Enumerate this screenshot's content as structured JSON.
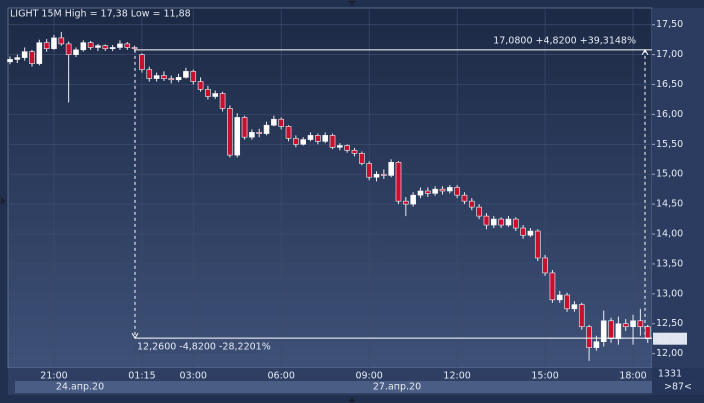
{
  "chart_data": {
    "type": "candlestick",
    "title": "LIGHT 15M High = 17,38 Low = 11,88",
    "categories": [
      null,
      null,
      null,
      null,
      null,
      null,
      "21:00",
      null,
      null,
      null,
      null,
      null,
      null,
      null,
      null,
      null,
      null,
      null,
      "01:15",
      null,
      null,
      null,
      null,
      null,
      null,
      "03:00",
      null,
      null,
      null,
      null,
      null,
      null,
      null,
      null,
      null,
      null,
      null,
      "06:00",
      null,
      null,
      null,
      null,
      null,
      null,
      null,
      null,
      null,
      null,
      null,
      "09:00",
      null,
      null,
      null,
      null,
      null,
      null,
      null,
      null,
      null,
      null,
      null,
      "12:00",
      null,
      null,
      null,
      null,
      null,
      null,
      null,
      null,
      null,
      null,
      null,
      "15:00",
      null,
      null,
      null,
      null,
      null,
      null,
      null,
      null,
      null,
      null,
      null,
      "18:00",
      null,
      null
    ],
    "date_labels": [
      "24.апр.20",
      "27.апр.20"
    ],
    "open": [
      16.88,
      16.92,
      16.95,
      17.05,
      16.85,
      17.2,
      17.1,
      17.28,
      17.18,
      17.0,
      17.08,
      17.2,
      17.12,
      17.15,
      17.1,
      17.12,
      17.18,
      17.12,
      17.0,
      16.75,
      16.6,
      16.65,
      16.6,
      16.58,
      16.62,
      16.72,
      16.55,
      16.42,
      16.3,
      16.35,
      16.1,
      15.32,
      15.95,
      15.62,
      15.7,
      15.68,
      15.82,
      15.92,
      15.8,
      15.6,
      15.5,
      15.58,
      15.65,
      15.55,
      15.65,
      15.45,
      15.48,
      15.4,
      15.35,
      15.18,
      14.95,
      15.0,
      14.98,
      15.2,
      14.55,
      14.5,
      14.65,
      14.72,
      14.68,
      14.75,
      14.72,
      14.78,
      14.65,
      14.55,
      14.45,
      14.3,
      14.15,
      14.25,
      14.15,
      14.25,
      14.1,
      13.98,
      14.05,
      13.6,
      13.35,
      12.9,
      12.98,
      12.75,
      12.82,
      12.45,
      12.1,
      12.2,
      12.55,
      12.25,
      12.5,
      12.45,
      12.55,
      12.45
    ],
    "high": [
      16.97,
      17.0,
      17.12,
      17.08,
      17.25,
      17.26,
      17.33,
      17.38,
      17.22,
      17.12,
      17.24,
      17.23,
      17.18,
      17.17,
      17.16,
      17.24,
      17.21,
      17.15,
      17.02,
      16.8,
      16.7,
      16.72,
      16.65,
      16.68,
      16.78,
      16.75,
      16.62,
      16.48,
      16.4,
      16.38,
      16.15,
      16.02,
      15.98,
      15.75,
      15.76,
      15.88,
      15.98,
      15.95,
      15.82,
      15.65,
      15.62,
      15.7,
      15.68,
      15.7,
      15.68,
      15.52,
      15.5,
      15.44,
      15.38,
      15.22,
      15.05,
      15.08,
      15.25,
      15.22,
      14.62,
      14.7,
      14.78,
      14.78,
      14.8,
      14.8,
      14.82,
      14.82,
      14.7,
      14.6,
      14.5,
      14.35,
      14.3,
      14.28,
      14.3,
      14.28,
      14.15,
      14.1,
      14.08,
      13.65,
      13.4,
      13.05,
      13.02,
      12.88,
      12.85,
      12.48,
      12.3,
      12.72,
      12.6,
      12.62,
      12.58,
      12.65,
      12.75,
      12.48
    ],
    "low": [
      16.84,
      16.86,
      16.9,
      16.8,
      16.82,
      17.05,
      17.08,
      17.15,
      16.2,
      16.96,
      17.05,
      17.08,
      17.06,
      17.06,
      17.06,
      17.08,
      17.08,
      17.06,
      16.7,
      16.55,
      16.55,
      16.56,
      16.52,
      16.54,
      16.6,
      16.5,
      16.38,
      16.25,
      16.26,
      16.05,
      15.28,
      15.28,
      15.58,
      15.58,
      15.62,
      15.65,
      15.8,
      15.75,
      15.55,
      15.45,
      15.48,
      15.55,
      15.5,
      15.52,
      15.42,
      15.4,
      15.36,
      15.3,
      15.15,
      14.9,
      14.88,
      14.92,
      14.95,
      14.5,
      14.3,
      14.46,
      14.6,
      14.62,
      14.64,
      14.66,
      14.68,
      14.6,
      14.5,
      14.4,
      14.25,
      14.08,
      14.1,
      14.1,
      14.12,
      14.05,
      13.92,
      13.95,
      13.55,
      13.3,
      12.85,
      12.85,
      12.7,
      12.7,
      12.4,
      11.88,
      12.05,
      12.12,
      12.18,
      12.15,
      12.38,
      12.15,
      12.3,
      12.18
    ],
    "close": [
      16.92,
      16.95,
      17.05,
      16.85,
      17.2,
      17.1,
      17.28,
      17.18,
      17.0,
      17.08,
      17.2,
      17.12,
      17.15,
      17.1,
      17.12,
      17.18,
      17.12,
      17.1,
      16.75,
      16.6,
      16.65,
      16.6,
      16.58,
      16.62,
      16.72,
      16.55,
      16.42,
      16.3,
      16.35,
      16.1,
      15.32,
      15.95,
      15.62,
      15.7,
      15.68,
      15.82,
      15.92,
      15.8,
      15.6,
      15.5,
      15.58,
      15.65,
      15.55,
      15.65,
      15.45,
      15.48,
      15.4,
      15.35,
      15.18,
      14.95,
      15.0,
      14.98,
      15.2,
      14.55,
      14.5,
      14.65,
      14.72,
      14.68,
      14.75,
      14.72,
      14.78,
      14.65,
      14.55,
      14.45,
      14.3,
      14.15,
      14.25,
      14.15,
      14.25,
      14.1,
      13.98,
      14.05,
      13.6,
      13.35,
      12.9,
      12.98,
      12.75,
      12.82,
      12.45,
      12.1,
      12.2,
      12.55,
      12.25,
      12.5,
      12.45,
      12.55,
      12.45,
      12.25
    ],
    "up_color": "#ffffff",
    "down_color": "#c8102e",
    "ylim": [
      11.76,
      17.78
    ],
    "yticks": [
      {
        "value": 12,
        "label": "12,00"
      },
      {
        "value": 12.5,
        "label": "12,50"
      },
      {
        "value": 13,
        "label": "13,00"
      },
      {
        "value": 13.5,
        "label": "13,50"
      },
      {
        "value": 14,
        "label": "14,00"
      },
      {
        "value": 14.5,
        "label": "14,50"
      },
      {
        "value": 15,
        "label": "15,00"
      },
      {
        "value": 15.5,
        "label": "15,50"
      },
      {
        "value": 16,
        "label": "16,00"
      },
      {
        "value": 16.5,
        "label": "16,50"
      },
      {
        "value": 17,
        "label": "17,00"
      },
      {
        "value": 17.5,
        "label": "17,50"
      }
    ],
    "grid": true,
    "measure": {
      "high": 17.08,
      "low": 12.26,
      "high_label": "17,0800 +4,8200 +39,3148%",
      "low_label": "12,2600 -4,8200 -28,2201%"
    },
    "last_price": {
      "value": 12.25,
      "label": "12,25"
    },
    "counter": "1331",
    "counter_sub": ">87<"
  }
}
